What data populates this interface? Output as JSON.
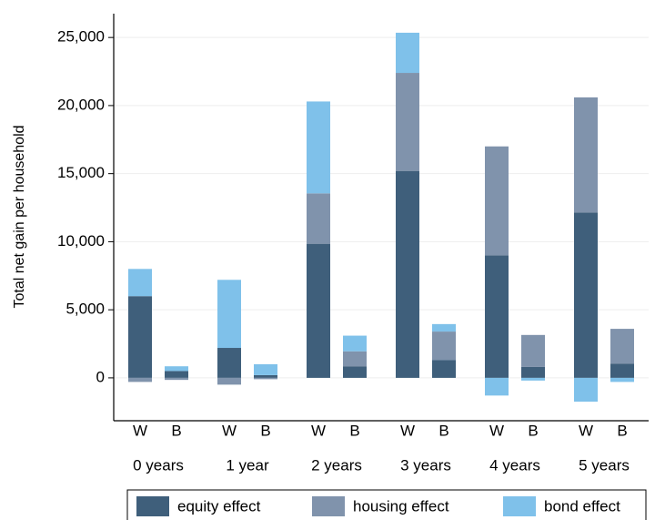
{
  "chart_data": {
    "type": "stacked-bar",
    "ylabel": "Total net gain per household",
    "categories": [
      "W",
      "B",
      "W",
      "B",
      "W",
      "B",
      "W",
      "B",
      "W",
      "B",
      "W",
      "B"
    ],
    "groups": [
      "0 years",
      "1 year",
      "2 years",
      "3 years",
      "4 years",
      "5 years"
    ],
    "series": [
      {
        "name": "equity effect",
        "color": "#3f5f7b",
        "values": [
          6000,
          500,
          2200,
          200,
          9850,
          850,
          15200,
          1300,
          9000,
          800,
          12150,
          1050
        ]
      },
      {
        "name": "housing effect",
        "color": "#8093ac",
        "values": [
          -300,
          -150,
          -500,
          -100,
          3700,
          1100,
          7200,
          2100,
          8000,
          2350,
          8450,
          2550
        ]
      },
      {
        "name": "bond effect",
        "color": "#7fc1ea",
        "values": [
          2000,
          350,
          5000,
          800,
          6750,
          1150,
          2950,
          550,
          -1300,
          -200,
          -1750,
          -300
        ]
      }
    ],
    "ylim": [
      -3150,
      26750
    ],
    "yticks": [
      0,
      {
        "value": 5000,
        "label": "5,000"
      },
      {
        "value": 10000,
        "label": "10,000"
      },
      {
        "value": 15000,
        "label": "15,000"
      },
      {
        "value": 20000,
        "label": "20,000"
      },
      {
        "value": 25000,
        "label": "25,000"
      }
    ],
    "grid": true,
    "legend": "bottom"
  }
}
